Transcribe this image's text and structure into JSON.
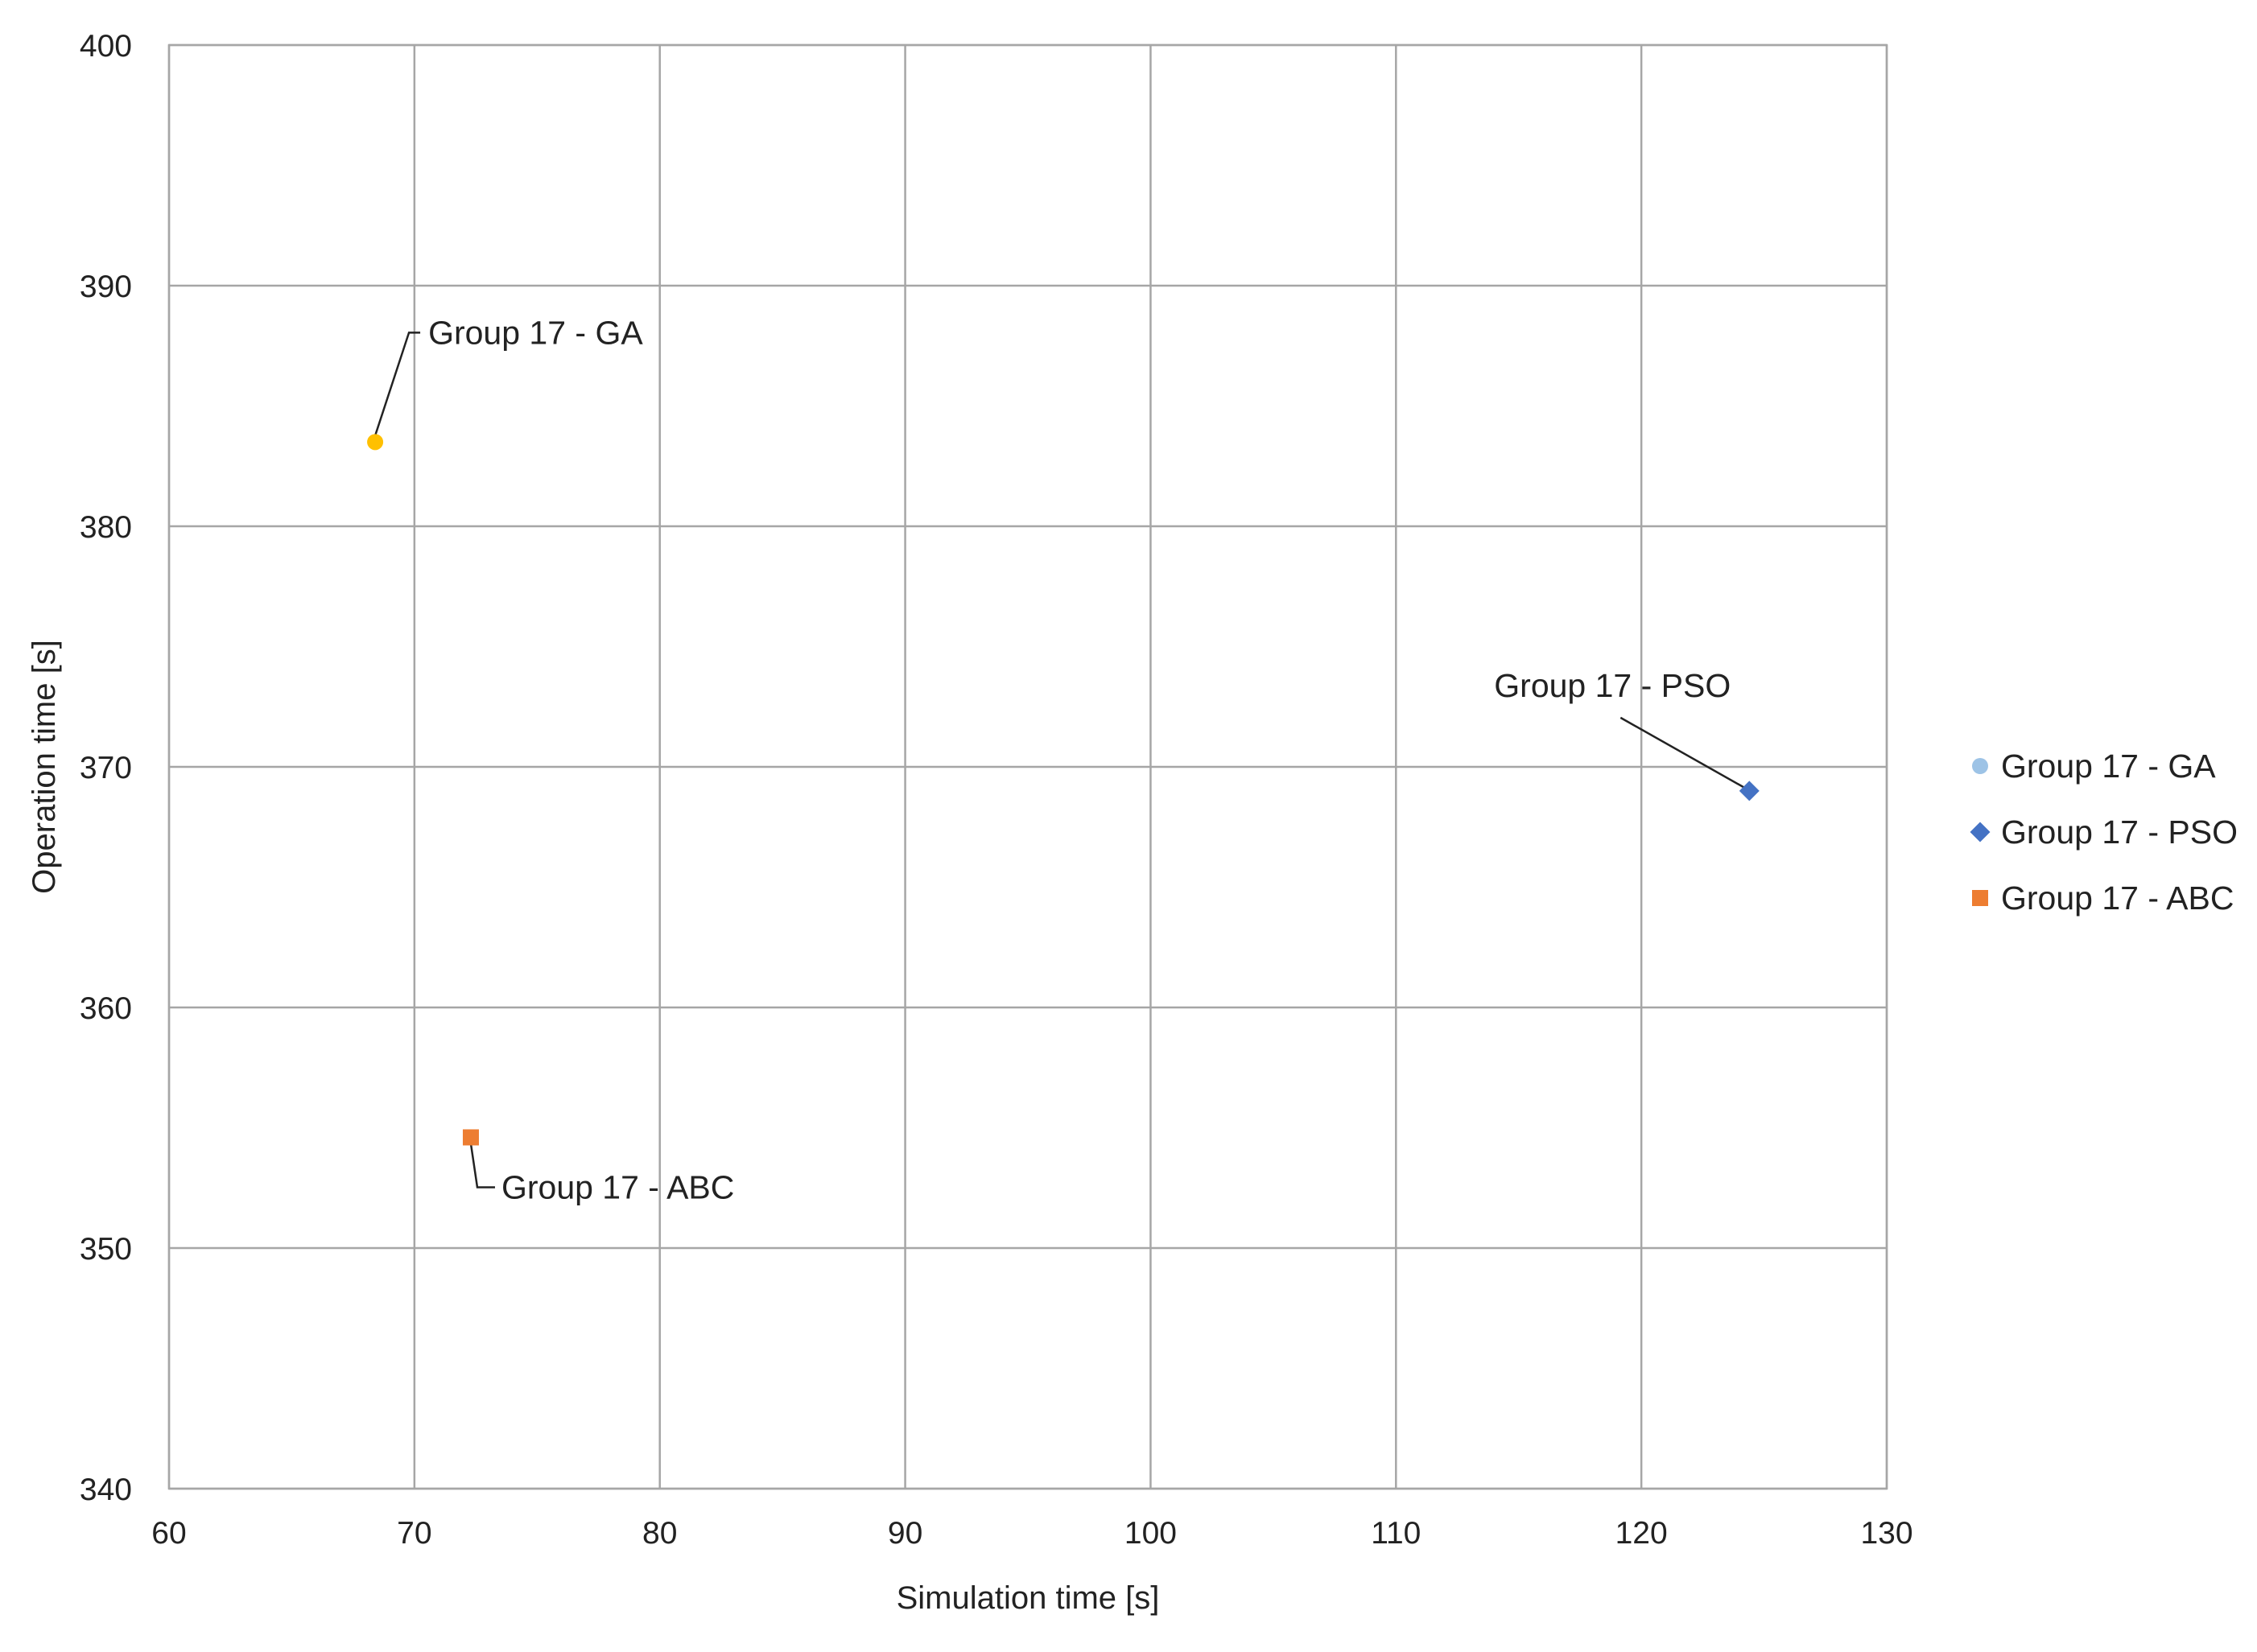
{
  "chart_data": {
    "type": "scatter",
    "title": "",
    "xlabel": "Simulation time [s]",
    "ylabel": "Operation time [s]",
    "xlim": [
      60,
      130
    ],
    "ylim": [
      340,
      400
    ],
    "xticks": [
      60,
      70,
      80,
      90,
      100,
      110,
      120,
      130
    ],
    "yticks": [
      340,
      350,
      360,
      370,
      380,
      390,
      400
    ],
    "grid": true,
    "legend_position": "right",
    "series": [
      {
        "name": "Group 17 - GA",
        "marker": "circle",
        "color": "#FFC000",
        "legend_color": "#9DC3E6",
        "points": [
          {
            "x": 68.4,
            "y": 383.5
          }
        ],
        "data_label": "Group 17 - GA"
      },
      {
        "name": "Group 17 - PSO",
        "marker": "diamond",
        "color": "#4472C4",
        "legend_color": "#4472C4",
        "points": [
          {
            "x": 124.4,
            "y": 369.0
          }
        ],
        "data_label": "Group 17 - PSO"
      },
      {
        "name": "Group 17 - ABC",
        "marker": "square",
        "color": "#ED7D31",
        "legend_color": "#ED7D31",
        "points": [
          {
            "x": 72.3,
            "y": 354.6
          }
        ],
        "data_label": "Group 17 - ABC"
      }
    ]
  },
  "colors": {
    "gridline": "#A6A6A6",
    "plot_border": "#A6A6A6",
    "text": "#222222",
    "leader_line": "#222222"
  }
}
